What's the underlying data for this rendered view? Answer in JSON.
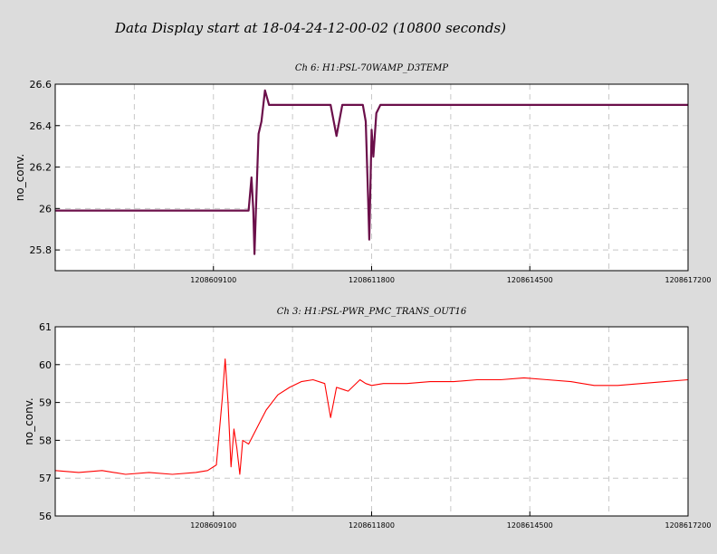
{
  "header": {
    "title": "Data Display start at 18-04-24-12-00-02 (10800 seconds)"
  },
  "chart_data": [
    {
      "type": "line",
      "title": "Ch 6: H1:PSL-70WAMP_D3TEMP",
      "ylabel": "no_conv.",
      "xlabel": "",
      "line_color": "#6b0f4a",
      "xlim": [
        1208606400,
        1208617200
      ],
      "ylim": [
        25.7,
        26.6
      ],
      "yticks": [
        25.8,
        26,
        26.2,
        26.4,
        26.6
      ],
      "xticks": [
        1208609100,
        1208611800,
        1208614500,
        1208617200
      ],
      "grid": true,
      "series": [
        {
          "x": [
            1208606400,
            1208607000,
            1208607600,
            1208608200,
            1208608800,
            1208609400,
            1208609700,
            1208609750,
            1208609780,
            1208609800,
            1208609830,
            1208609870,
            1208609920,
            1208609980,
            1208610050,
            1208610200,
            1208610400,
            1208610600,
            1208610900,
            1208611100,
            1208611200,
            1208611300,
            1208611400,
            1208611600,
            1208611650,
            1208611700,
            1208611740,
            1208611760,
            1208611800,
            1208611830,
            1208611880,
            1208611950,
            1208612000,
            1208612500,
            1208613000,
            1208613500,
            1208614000,
            1208614500,
            1208615000,
            1208615500,
            1208616000,
            1208616500,
            1208617000,
            1208617200
          ],
          "y": [
            25.99,
            25.99,
            25.99,
            25.99,
            25.99,
            25.99,
            25.99,
            26.15,
            25.99,
            25.78,
            26.03,
            26.36,
            26.42,
            26.57,
            26.5,
            26.5,
            26.5,
            26.5,
            26.5,
            26.5,
            26.35,
            26.5,
            26.5,
            26.5,
            26.5,
            26.42,
            26.05,
            25.85,
            26.38,
            26.25,
            26.46,
            26.5,
            26.5,
            26.5,
            26.5,
            26.5,
            26.5,
            26.5,
            26.5,
            26.5,
            26.5,
            26.5,
            26.5,
            26.5
          ]
        }
      ]
    },
    {
      "type": "line",
      "title": "Ch 3: H1:PSL-PWR_PMC_TRANS_OUT16",
      "ylabel": "no_conv.",
      "xlabel": "",
      "line_color": "#ff0000",
      "xlim": [
        1208606400,
        1208617200
      ],
      "ylim": [
        56,
        61
      ],
      "yticks": [
        56,
        57,
        58,
        59,
        60,
        61
      ],
      "xticks": [
        1208609100,
        1208611800,
        1208614500,
        1208617200
      ],
      "grid": true,
      "series": [
        {
          "x": [
            1208606400,
            1208606800,
            1208607200,
            1208607600,
            1208608000,
            1208608400,
            1208608800,
            1208609000,
            1208609150,
            1208609250,
            1208609300,
            1208609350,
            1208609400,
            1208609450,
            1208609500,
            1208609550,
            1208609600,
            1208609700,
            1208609800,
            1208609900,
            1208610000,
            1208610200,
            1208610400,
            1208610600,
            1208610800,
            1208611000,
            1208611100,
            1208611200,
            1208611400,
            1208611600,
            1208611700,
            1208611800,
            1208612000,
            1208612400,
            1208612800,
            1208613200,
            1208613600,
            1208614000,
            1208614400,
            1208614800,
            1208615200,
            1208615600,
            1208616000,
            1208616400,
            1208616800,
            1208617200
          ],
          "y": [
            57.2,
            57.15,
            57.2,
            57.1,
            57.15,
            57.1,
            57.15,
            57.2,
            57.35,
            59.1,
            60.15,
            59.0,
            57.3,
            58.3,
            57.8,
            57.1,
            58.0,
            57.9,
            58.2,
            58.5,
            58.8,
            59.2,
            59.4,
            59.55,
            59.6,
            59.5,
            58.6,
            59.4,
            59.3,
            59.6,
            59.5,
            59.45,
            59.5,
            59.5,
            59.55,
            59.55,
            59.6,
            59.6,
            59.65,
            59.6,
            59.55,
            59.45,
            59.45,
            59.5,
            59.55,
            59.6
          ]
        }
      ]
    }
  ]
}
